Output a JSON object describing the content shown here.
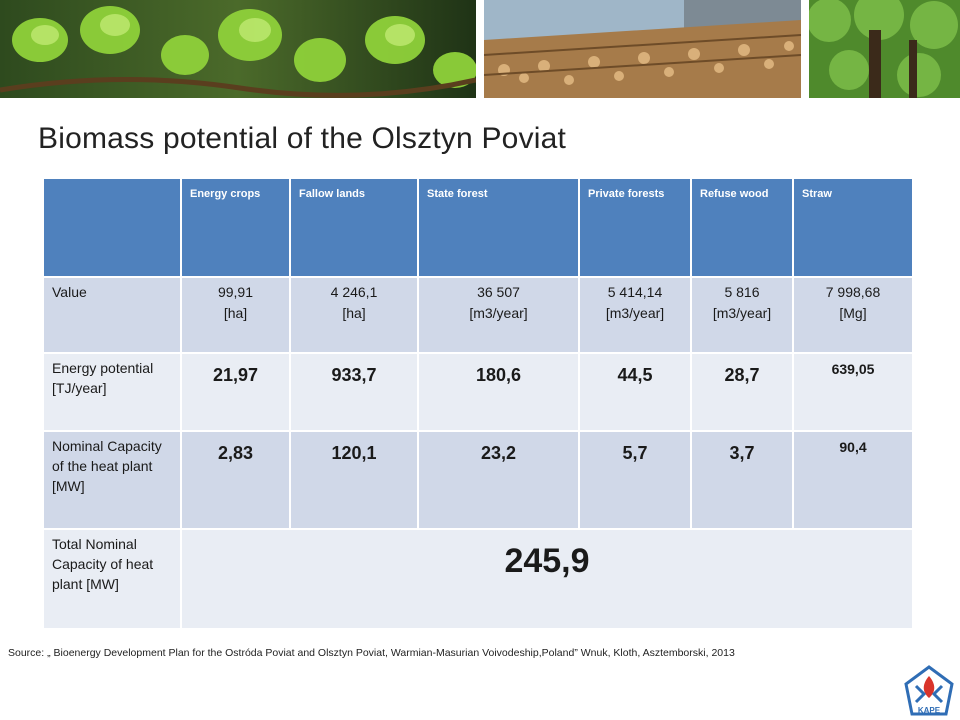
{
  "title": "Biomass potential of the Olsztyn Poviat",
  "header_images": [
    "spruce-shoots-photo",
    "wood-log-pile-photo",
    "forest-trees-photo"
  ],
  "table": {
    "columns": [
      "Energy crops",
      "Fallow lands",
      "State forest",
      "Private forests",
      "Refuse wood",
      "Straw"
    ],
    "value_row": {
      "label": "Value",
      "cells": [
        {
          "value": "99,91",
          "unit": "[ha]"
        },
        {
          "value": "4 246,1",
          "unit": "[ha]"
        },
        {
          "value": "36 507",
          "unit": "[m3/year]"
        },
        {
          "value": "5 414,14",
          "unit": "[m3/year]"
        },
        {
          "value": "5 816",
          "unit": "[m3/year]"
        },
        {
          "value": "7 998,68",
          "unit": "[Mg]"
        }
      ]
    },
    "energy_row": {
      "label": "Energy potential [TJ/year]",
      "cells": [
        "21,97",
        "933,7",
        "180,6",
        "44,5",
        "28,7",
        "639,05"
      ]
    },
    "capacity_row": {
      "label": "Nominal Capacity of the heat plant [MW]",
      "cells": [
        "2,83",
        "120,1",
        "23,2",
        "5,7",
        "3,7",
        "90,4"
      ]
    },
    "total_row": {
      "label": "Total Nominal Capacity of heat plant [MW]",
      "value": "245,9"
    }
  },
  "source": "Source: „ Bioenergy Development Plan for the Ostróda Poviat and Olsztyn Poviat, Warmian-Masurian Voivodeship,Poland” Wnuk, Kloth, Asztemborski, 2013",
  "logo_text": "KAPE",
  "colors": {
    "header_blue": "#4f81bd",
    "row_dark": "#d0d8e8",
    "row_light": "#e9edf4",
    "logo_blue": "#2f6db5",
    "logo_red": "#d9342b"
  }
}
